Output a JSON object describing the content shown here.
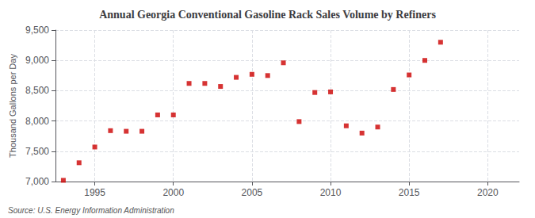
{
  "chart_data": {
    "type": "scatter",
    "title": "Annual Georgia Conventional Gasoline Rack Sales Volume by Refiners",
    "ylabel": "Thousand Gallons per Day",
    "source": "Source: U.S. Energy Information Administration",
    "x": [
      1993,
      1994,
      1995,
      1996,
      1997,
      1998,
      1999,
      2000,
      2001,
      2002,
      2003,
      2004,
      2005,
      2006,
      2007,
      2008,
      2009,
      2010,
      2011,
      2012,
      2013,
      2014,
      2015,
      2016,
      2017,
      2018
    ],
    "values": [
      7020,
      7310,
      7570,
      7840,
      7830,
      7830,
      8100,
      8100,
      8620,
      8620,
      8570,
      8720,
      8770,
      8750,
      8960,
      7990,
      8470,
      8480,
      7920,
      7800,
      7900,
      8520,
      8760,
      9000,
      9300,
      null
    ],
    "color": "#cc0000",
    "marker": "square",
    "xlim": [
      1992.5,
      2022
    ],
    "xticks": [
      1995,
      2000,
      2005,
      2010,
      2015,
      2020
    ],
    "ylim": [
      7000,
      9500
    ],
    "yticks": [
      {
        "value": 7000,
        "label": "7,000"
      },
      {
        "value": 7500,
        "label": "7,500"
      },
      {
        "value": 8000,
        "label": "8,000"
      },
      {
        "value": 8500,
        "label": "8,500"
      },
      {
        "value": 9000,
        "label": "9,000"
      },
      {
        "value": 9500,
        "label": "9,500"
      }
    ],
    "grid": true
  }
}
